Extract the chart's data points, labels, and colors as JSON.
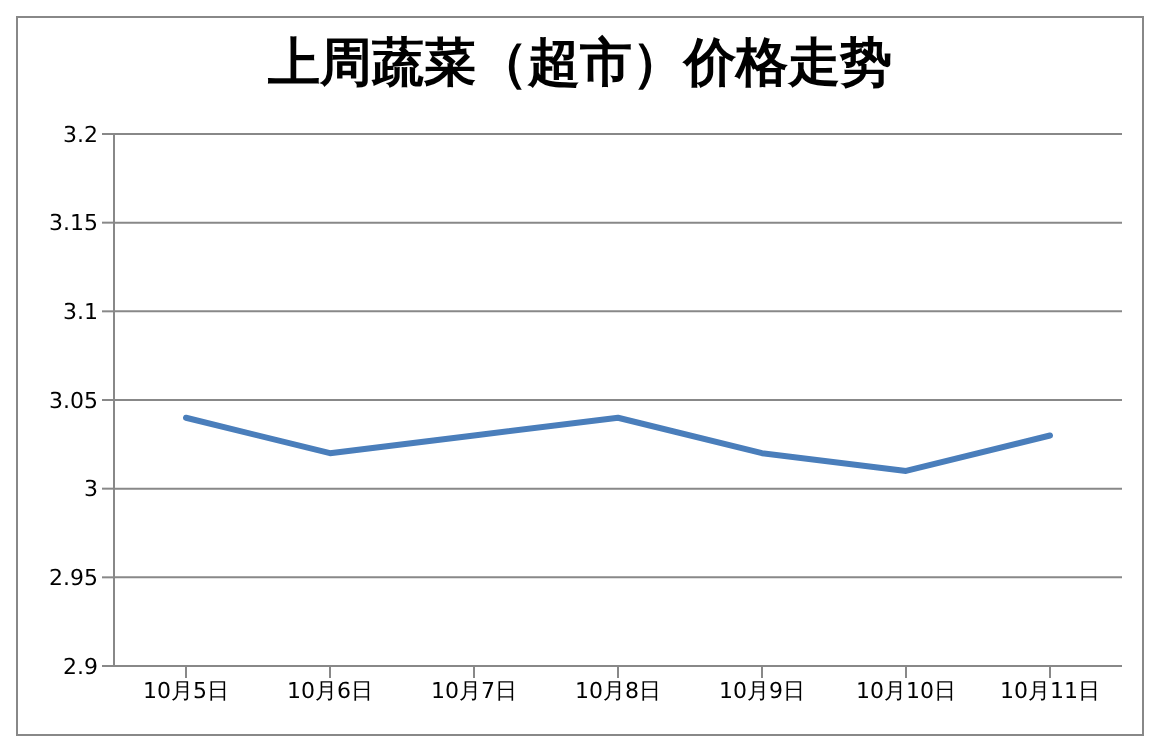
{
  "chart_data": {
    "type": "line",
    "title": "上周蔬菜（超市）价格走势",
    "categories": [
      "10月5日",
      "10月6日",
      "10月7日",
      "10月8日",
      "10月9日",
      "10月10日",
      "10月11日"
    ],
    "series": [
      {
        "color": "#4a7ebb",
        "values": [
          3.04,
          3.02,
          3.03,
          3.04,
          3.02,
          3.01,
          3.03
        ]
      }
    ],
    "ylim": [
      2.9,
      3.2
    ],
    "yticks": [
      2.9,
      2.95,
      3,
      3.05,
      3.1,
      3.15,
      3.2
    ],
    "grid": "y",
    "legend": false,
    "marker": "none",
    "line_style": "solid"
  }
}
